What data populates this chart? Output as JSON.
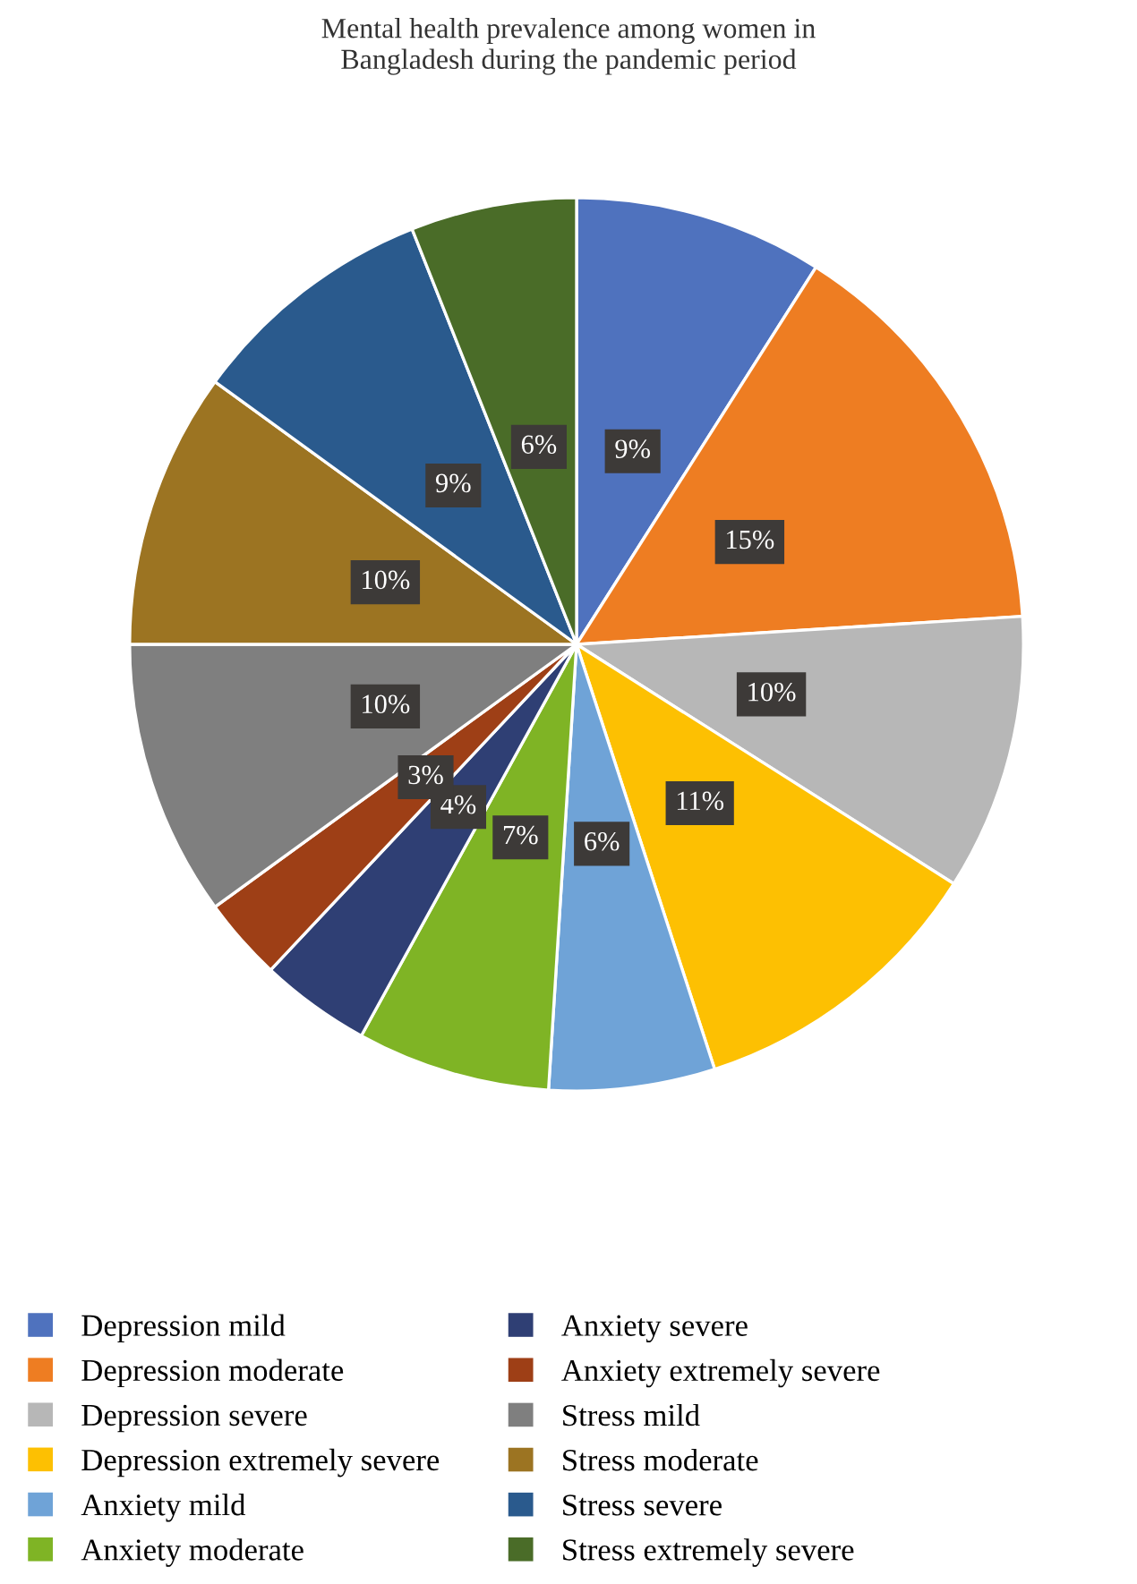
{
  "chart_data": {
    "type": "pie",
    "title": "Mental health prevalence among women in\nBangladesh during the pandemic period",
    "categories": [
      "Depression mild",
      "Depression moderate",
      "Depression severe",
      "Depression extremely severe",
      "Anxiety mild",
      "Anxiety moderate",
      "Anxiety severe",
      "Anxiety extremely severe",
      "Stress mild",
      "Stress moderate",
      "Stress severe",
      "Stress extremely severe"
    ],
    "values": [
      9,
      15,
      10,
      11,
      6,
      7,
      4,
      3,
      10,
      10,
      9,
      6
    ],
    "value_labels": [
      "9%",
      "15%",
      "10%",
      "11%",
      "6%",
      "7%",
      "4%",
      "3%",
      "10%",
      "10%",
      "9%",
      "6%"
    ],
    "colors": [
      "#4f72be",
      "#ee7d22",
      "#b7b7b7",
      "#fdc002",
      "#6fa3d7",
      "#7fb425",
      "#2f3f74",
      "#9e3f16",
      "#7f7f7f",
      "#9c7422",
      "#2a5a8d",
      "#4a6c28"
    ],
    "legend": "bottom"
  }
}
